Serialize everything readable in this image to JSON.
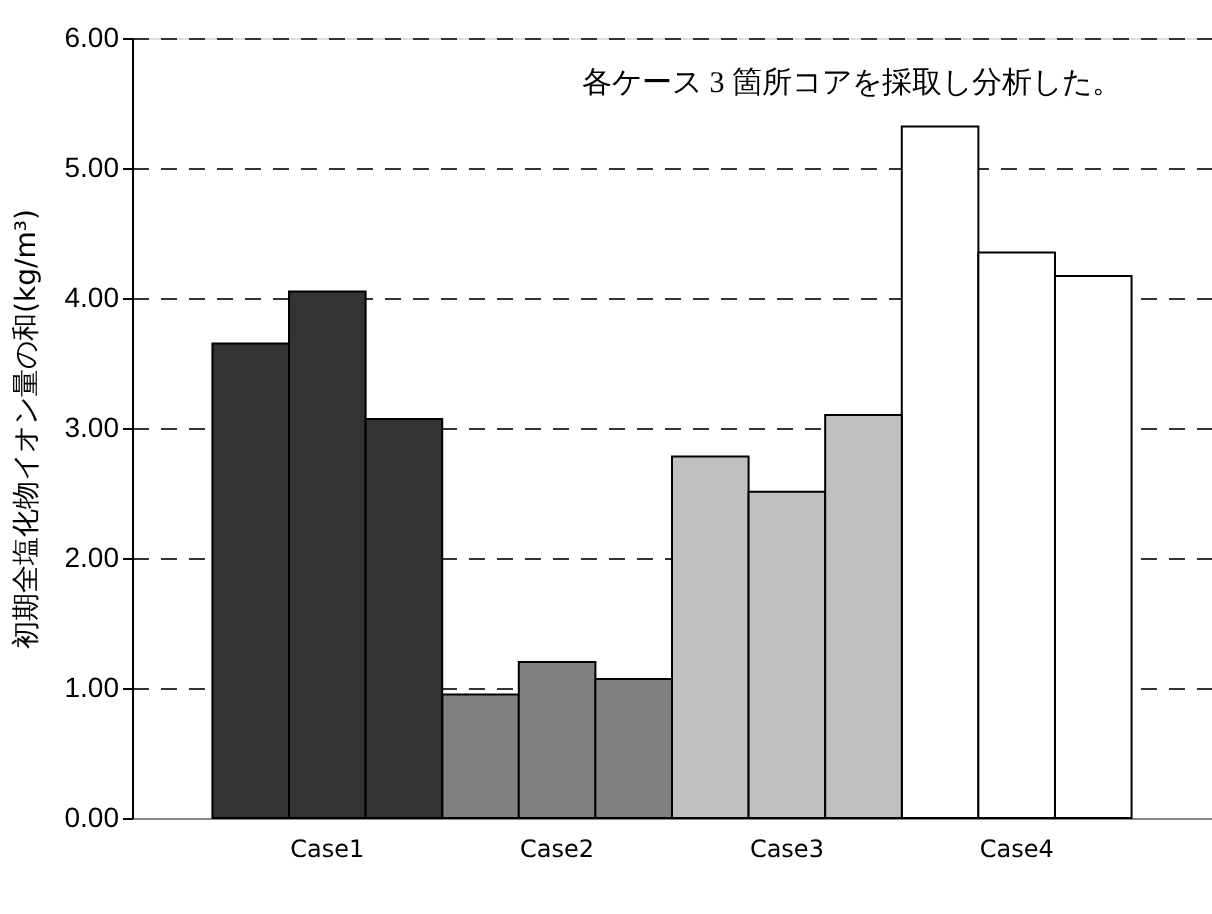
{
  "chart_data": {
    "type": "bar",
    "ylabel": "初期全塩化物イオン量の和(kg/m³)",
    "categories": [
      "Case1",
      "Case2",
      "Case3",
      "Case4"
    ],
    "series": [
      {
        "values": [
          3.65,
          0.95,
          2.78,
          5.32
        ],
        "colors": [
          "#333333",
          "#808080",
          "#c0c0c0",
          "#ffffff"
        ]
      },
      {
        "values": [
          4.05,
          1.2,
          2.51,
          4.35
        ],
        "colors": [
          "#333333",
          "#808080",
          "#c0c0c0",
          "#ffffff"
        ]
      },
      {
        "values": [
          3.07,
          1.07,
          3.1,
          4.17
        ],
        "colors": [
          "#333333",
          "#808080",
          "#c0c0c0",
          "#ffffff"
        ]
      }
    ],
    "ylim": [
      0,
      6
    ],
    "yticks": [
      {
        "value": 0,
        "label": "0.00"
      },
      {
        "value": 1,
        "label": "1.00"
      },
      {
        "value": 2,
        "label": "2.00"
      },
      {
        "value": 3,
        "label": "3.00"
      },
      {
        "value": 4,
        "label": "4.00"
      },
      {
        "value": 5,
        "label": "5.00"
      },
      {
        "value": 6,
        "label": "6.00"
      }
    ],
    "grid": "y",
    "annotations": [
      "各ケース 3 箇所コアを採取し分析した。"
    ]
  }
}
